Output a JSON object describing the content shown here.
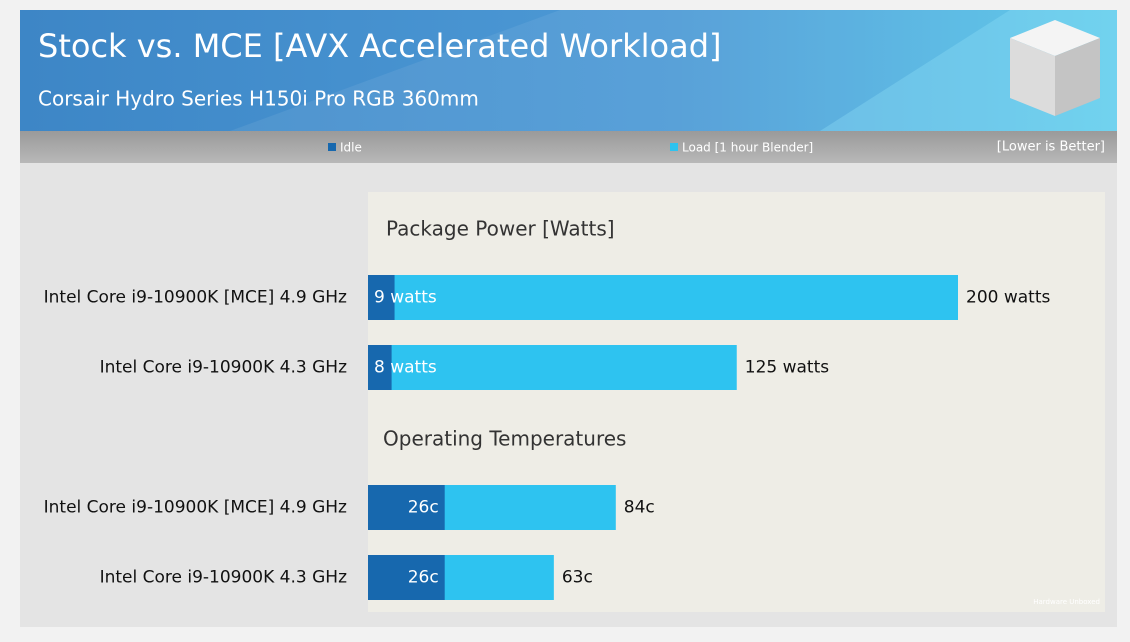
{
  "header": {
    "title": "Stock vs. MCE [AVX Accelerated Workload]",
    "subtitle": "Corsair Hydro Series H150i Pro RGB 360mm",
    "note": "[Lower is Better]",
    "watermark": "Hardware Unboxed"
  },
  "chart_data": [
    {
      "type": "bar",
      "title": "Package  Power [Watts]",
      "categories": [
        "Intel Core i9-10900K [MCE] 4.9 GHz",
        "Intel Core i9-10900K 4.3 GHz"
      ],
      "series": [
        {
          "name": "Idle",
          "color": "#1768ae",
          "values": [
            9,
            8
          ],
          "value_labels": [
            "9 watts",
            "8 watts"
          ]
        },
        {
          "name": "Load [1 hour Blender]",
          "color": "#2ec3f0",
          "values": [
            200,
            125
          ],
          "value_labels": [
            "200 watts",
            "125 watts"
          ]
        }
      ]
    },
    {
      "type": "bar",
      "title": "Operating Temperatures",
      "categories": [
        "Intel Core i9-10900K [MCE] 4.9 GHz",
        "Intel Core i9-10900K 4.3 GHz"
      ],
      "series": [
        {
          "color": "#1768ae",
          "values": [
            26,
            26
          ],
          "value_labels": [
            "26c",
            "26c"
          ]
        },
        {
          "color": "#2ec3f0",
          "values": [
            84,
            63
          ],
          "value_labels": [
            "84c",
            "63c"
          ]
        }
      ]
    }
  ]
}
